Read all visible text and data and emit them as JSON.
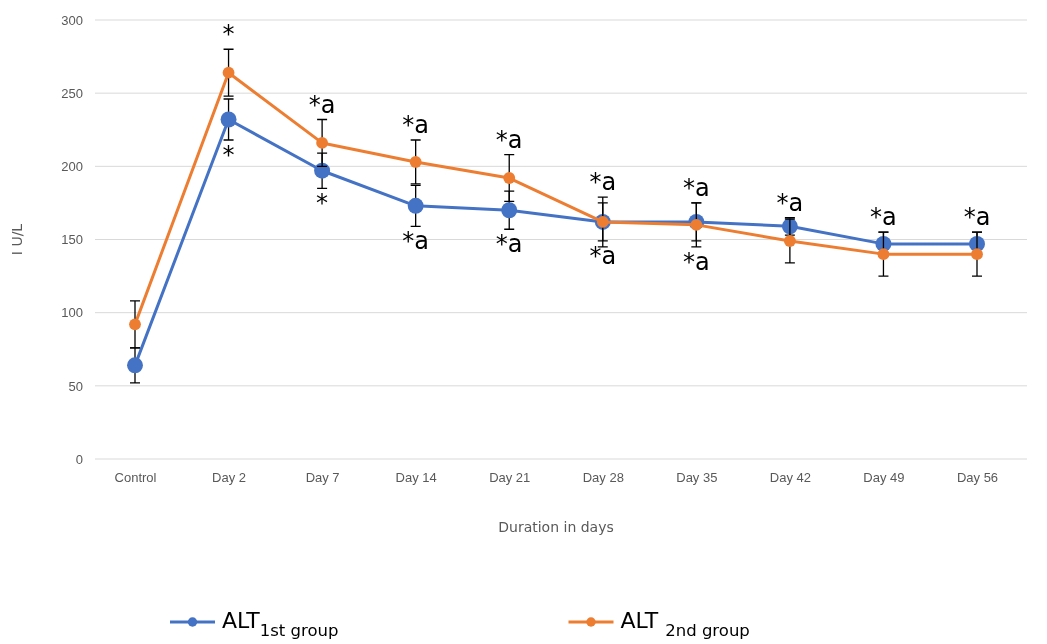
{
  "chart_data": {
    "type": "line",
    "xlabel": "Duration in days",
    "ylabel": "I U/L",
    "categories": [
      "Control",
      "Day 2",
      "Day 7",
      "Day 14",
      "Day 21",
      "Day 28",
      "Day 35",
      "Day 42",
      "Day 49",
      "Day 56"
    ],
    "series": [
      {
        "name": "ALT$_{1st group}$",
        "color": "#4472c4",
        "values": [
          64,
          232,
          197,
          173,
          170,
          162,
          162,
          159,
          147,
          147
        ],
        "errors": [
          12,
          14,
          12,
          14,
          13,
          13,
          13,
          6,
          8,
          8
        ]
      },
      {
        "name": "ALT $_{2nd group}$",
        "color": "#ed7d31",
        "values": [
          92,
          264,
          216,
          203,
          192,
          162,
          160,
          149,
          140,
          140
        ],
        "errors": [
          16,
          16,
          16,
          15,
          16,
          17,
          15,
          15,
          15,
          15
        ]
      }
    ],
    "ylim": [
      0,
      300
    ],
    "yticks": [
      0,
      50,
      100,
      150,
      200,
      250,
      300
    ],
    "grid": "y",
    "legend": "bottom",
    "marker": "circle",
    "line_style": "solid",
    "annotations": [
      {
        "text": "*",
        "x": "Day 2",
        "y": 264
      },
      {
        "text": "*",
        "x": "Day 2",
        "y": 232
      },
      {
        "text": "*a",
        "x": "Day 7",
        "y": 216
      },
      {
        "text": "*",
        "x": "Day 7",
        "y": 197
      },
      {
        "text": "*a",
        "x": "Day 14",
        "y": 203
      },
      {
        "text": "*a",
        "x": "Day 14",
        "y": 173
      },
      {
        "text": "*a",
        "x": "Day 21",
        "y": 192
      },
      {
        "text": "*a",
        "x": "Day 21",
        "y": 170
      },
      {
        "text": "*a",
        "x": "Day 28",
        "y": 162
      },
      {
        "text": "*a",
        "x": "Day 28",
        "y": 162
      },
      {
        "text": "*a",
        "x": "Day 35",
        "y": 162
      },
      {
        "text": "*a",
        "x": "Day 35",
        "y": 160
      },
      {
        "text": "*a",
        "x": "Day 42",
        "y": 159
      },
      {
        "text": "*a",
        "x": "Day 49",
        "y": 147
      },
      {
        "text": "*a",
        "x": "Day 56",
        "y": 147
      }
    ]
  }
}
